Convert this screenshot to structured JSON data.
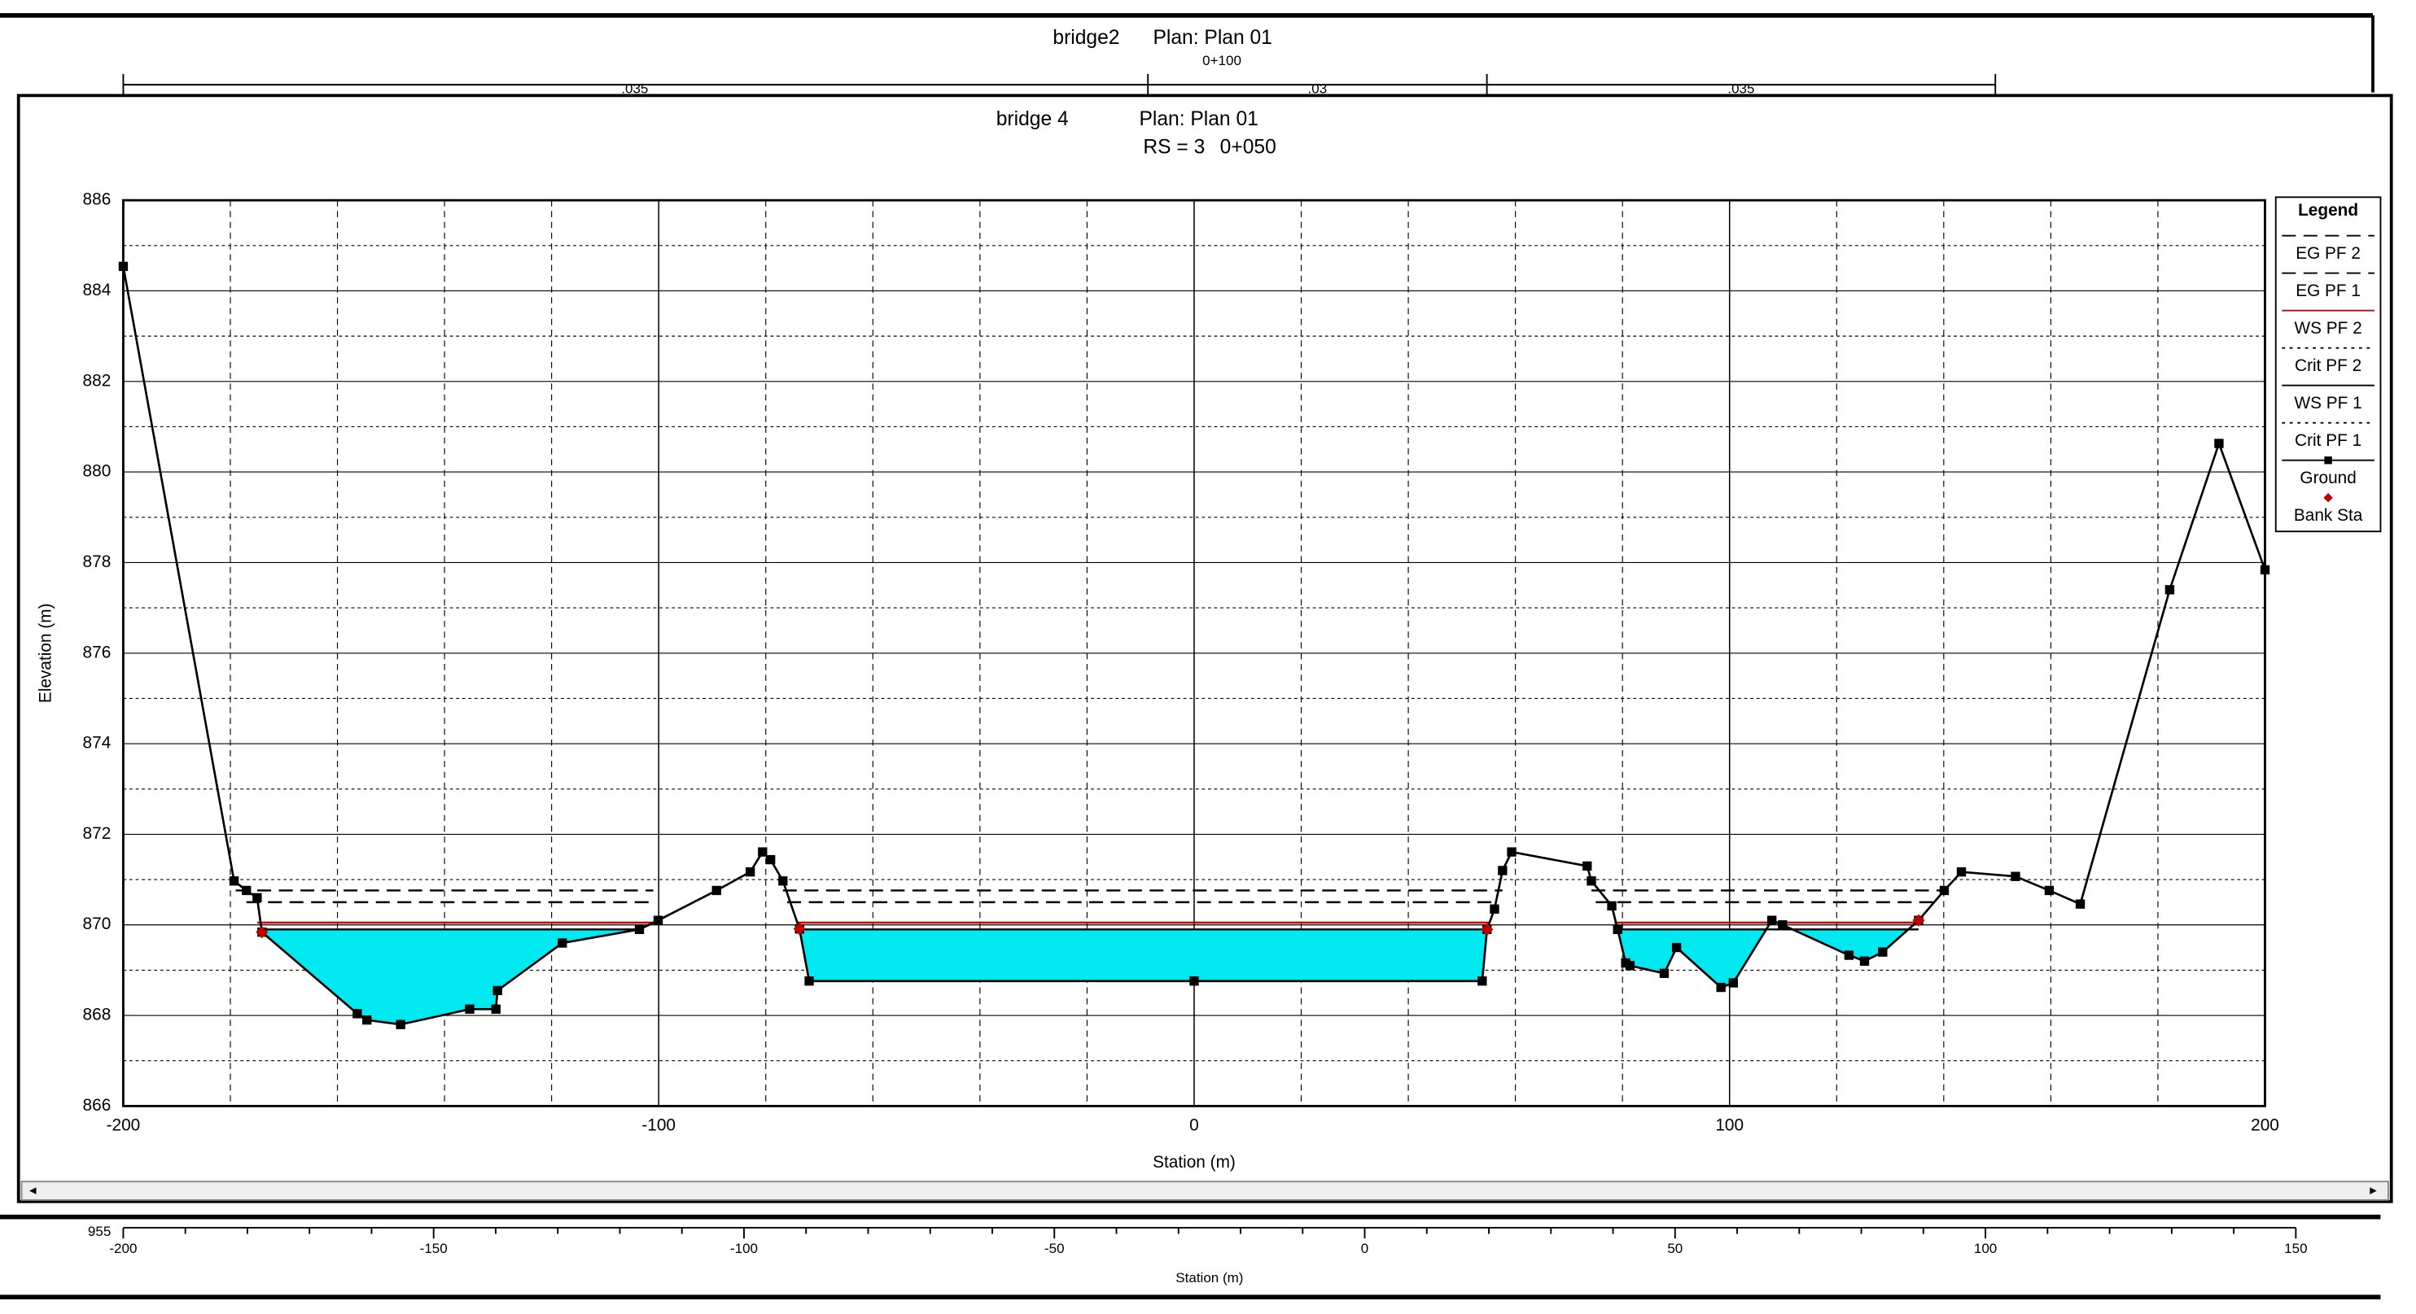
{
  "top_window": {
    "title": "bridge2",
    "plan": "Plan: Plan 01",
    "station": "0+100",
    "n_values": [
      ".035",
      ".03",
      ".035"
    ]
  },
  "chart_data": [
    {
      "type": "line",
      "title": "bridge 4",
      "plan": "Plan: Plan 01",
      "rs": "RS = 3",
      "station": "0+050",
      "xlabel": "Station (m)",
      "ylabel": "Elevation (m)",
      "xlim": [
        -200,
        200
      ],
      "xticks": [
        -200,
        -100,
        0,
        100,
        200
      ],
      "ylim": [
        866,
        886
      ],
      "yticks": [
        866,
        868,
        870,
        872,
        874,
        876,
        878,
        880,
        882,
        884,
        886
      ],
      "grid": true,
      "minor_grid": true,
      "legend_title": "Legend",
      "legend": "right",
      "fill_color": "#00e8f0",
      "series": [
        {
          "name": "EG PF 2",
          "color": "#000000",
          "style": "dash",
          "x": [
            -179,
            -101,
            null,
            -76.8,
            57.6,
            null,
            74.2,
            140.1
          ],
          "values": [
            870.76,
            870.76,
            null,
            870.76,
            870.76,
            null,
            870.76,
            870.76
          ]
        },
        {
          "name": "EG PF 1",
          "color": "#000000",
          "style": "dash",
          "x": [
            -177,
            -101,
            null,
            -76,
            56,
            null,
            75,
            138
          ],
          "values": [
            870.5,
            870.5,
            null,
            870.5,
            870.5,
            null,
            870.5,
            870.5
          ]
        },
        {
          "name": "WS PF 2",
          "color": "#cc0000",
          "style": "solid",
          "x": [
            -175,
            -100.5,
            null,
            -74,
            55,
            null,
            78.5,
            136
          ],
          "values": [
            870.05,
            870.05,
            null,
            870.05,
            870.05,
            null,
            870.05,
            870.05
          ]
        },
        {
          "name": "Crit PF 2",
          "color": "#000000",
          "style": "dot",
          "x": [],
          "values": []
        },
        {
          "name": "WS PF 1",
          "color": "#000000",
          "style": "solid",
          "fill": true,
          "x": [
            -174.1,
            -103.6,
            null,
            -73.7,
            54.7,
            null,
            79.1,
            135.3
          ],
          "values": [
            869.9,
            869.9,
            null,
            869.9,
            869.9,
            null,
            869.9,
            869.9
          ]
        },
        {
          "name": "Crit PF 1",
          "color": "#000000",
          "style": "dot",
          "x": [],
          "values": []
        },
        {
          "name": "Ground",
          "color": "#000000",
          "style": "solid",
          "marker": "square",
          "x": [
            -200,
            -179.3,
            -177,
            -175,
            -174.1,
            -156.3,
            -154.5,
            -148.2,
            -135.3,
            -130.4,
            -130.1,
            -118,
            -103.6,
            -100.1,
            -89.2,
            -82.9,
            -80.6,
            -79.1,
            -76.8,
            -73.7,
            -71.9,
            0,
            53.8,
            54.7,
            56.1,
            57.6,
            59.3,
            73.4,
            74.2,
            78,
            79.1,
            80.6,
            81.4,
            87.8,
            90.1,
            98.4,
            100.7,
            107.9,
            109.9,
            122.3,
            125.2,
            128.6,
            135.3,
            140.1,
            143.3,
            153.4,
            159.7,
            165.5,
            182.2,
            191.4,
            200
          ],
          "values": [
            884.54,
            870.97,
            870.76,
            870.6,
            869.84,
            868.04,
            867.9,
            867.8,
            868.14,
            868.14,
            868.55,
            869.6,
            869.9,
            870.1,
            870.76,
            871.17,
            871.61,
            871.44,
            870.97,
            869.91,
            868.76,
            868.76,
            868.76,
            869.9,
            870.35,
            871.2,
            871.61,
            871.3,
            870.97,
            870.42,
            869.9,
            869.16,
            869.1,
            868.93,
            869.5,
            868.62,
            868.72,
            870.1,
            870,
            869.33,
            869.2,
            869.4,
            870.1,
            870.76,
            871.17,
            871.07,
            870.76,
            870.46,
            877.4,
            880.63,
            877.84
          ]
        },
        {
          "name": "Bank Sta",
          "color": "#c00000",
          "style": "none",
          "marker": "diamond",
          "x": [
            -174.1,
            -73.7,
            54.7,
            135.3
          ],
          "values": [
            869.84,
            869.91,
            869.9,
            870.1
          ]
        }
      ]
    },
    {
      "type": "axis",
      "xlabel": "Station (m)",
      "xlim": [
        -200,
        150
      ],
      "xticks": [
        -200,
        -150,
        -100,
        -50,
        0,
        50,
        100,
        150
      ],
      "yticks": [
        955
      ]
    }
  ]
}
